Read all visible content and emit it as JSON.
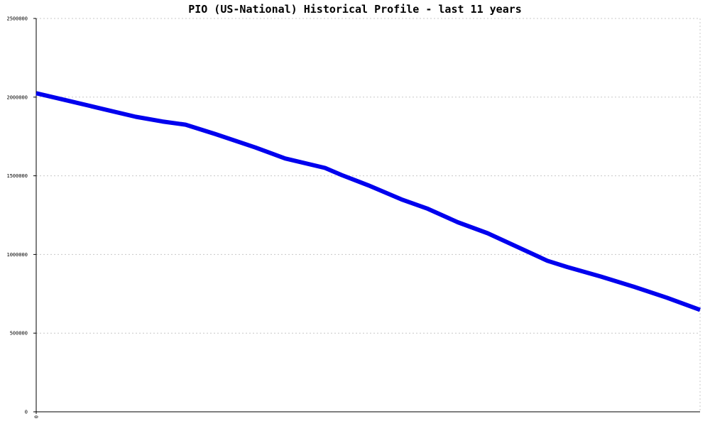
{
  "chart_data": {
    "type": "line",
    "title": "PIO (US-National) Historical Profile - last 11 years",
    "ylim": [
      0,
      2500000
    ],
    "y_ticks": [
      "0",
      "500000",
      "1000000",
      "1500000",
      "2000000",
      "2500000"
    ],
    "x_ticks": [
      "0"
    ],
    "grid": true,
    "series": [
      {
        "color": "#0000ee",
        "x": [
          0,
          0.05,
          0.1,
          0.15,
          0.19,
          0.225,
          0.27,
          0.33,
          0.375,
          0.435,
          0.46,
          0.5,
          0.55,
          0.59,
          0.635,
          0.68,
          0.77,
          0.8,
          0.85,
          0.9,
          0.95,
          1
        ],
        "values": [
          2025000,
          1975000,
          1925000,
          1875000,
          1845000,
          1825000,
          1765000,
          1680000,
          1610000,
          1550000,
          1505000,
          1440000,
          1350000,
          1290000,
          1205000,
          1135000,
          960000,
          920000,
          860000,
          795000,
          725000,
          648000
        ]
      }
    ]
  }
}
